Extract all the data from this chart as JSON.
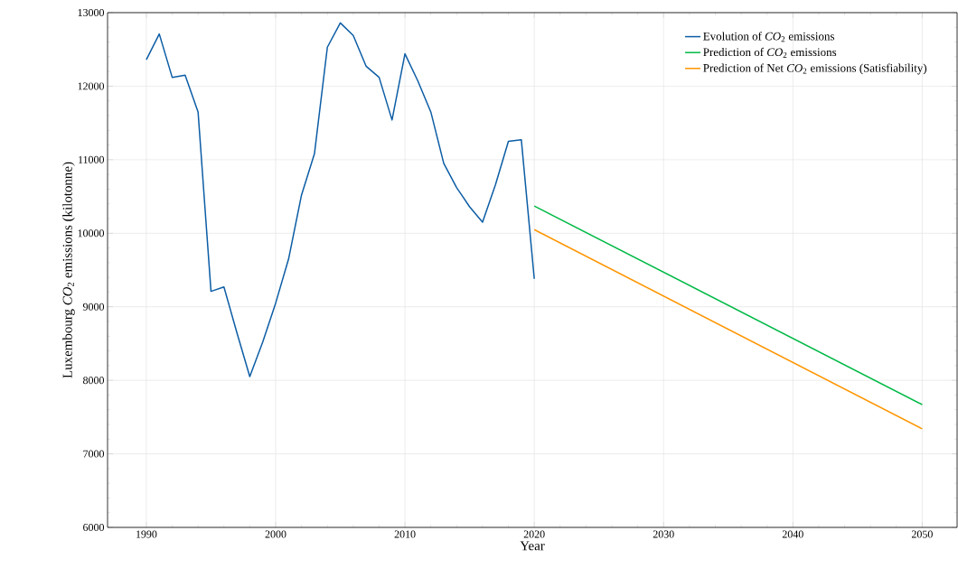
{
  "chart_data": {
    "type": "line",
    "xlabel": "Year",
    "ylabel": "Luxembourg *CO*$_{2}$ emissions (kilotonne)",
    "xlim": [
      1987,
      2052.7
    ],
    "ylim": [
      6000,
      13000
    ],
    "xticks": [
      1990,
      2000,
      2010,
      2020,
      2030,
      2040,
      2050
    ],
    "yticks": [
      6000,
      7000,
      8000,
      9000,
      10000,
      11000,
      12000,
      13000
    ],
    "grid": true,
    "legend": "top right",
    "line_style": "solid",
    "series": [
      {
        "name": "Evolution of *CO*$_{2}$ emissions",
        "color": "#0c5da5",
        "x": [
          1990,
          1991,
          1992,
          1993,
          1994,
          1995,
          1996,
          1997,
          1998,
          1999,
          2000,
          2001,
          2002,
          2003,
          2004,
          2005,
          2006,
          2007,
          2008,
          2009,
          2010,
          2011,
          2012,
          2013,
          2014,
          2015,
          2016,
          2017,
          2018,
          2019,
          2020
        ],
        "values": [
          12360,
          12710,
          12120,
          12150,
          11650,
          9210,
          9270,
          8650,
          8050,
          8520,
          9050,
          9650,
          10520,
          11080,
          12530,
          12860,
          12690,
          12270,
          12120,
          11540,
          12440,
          12070,
          11650,
          10950,
          10620,
          10360,
          10150,
          10660,
          11250,
          11270,
          9380
        ]
      },
      {
        "name": "Prediction of *CO*$_{2}$ emissions",
        "color": "#00b945",
        "x": [
          2020,
          2050
        ],
        "values": [
          10370,
          7670
        ]
      },
      {
        "name": "Prediction of Net *CO*$_{2}$ emissions (Satisfiability)",
        "color": "#ff9500",
        "x": [
          2020,
          2050
        ],
        "values": [
          10050,
          7340
        ]
      }
    ]
  }
}
